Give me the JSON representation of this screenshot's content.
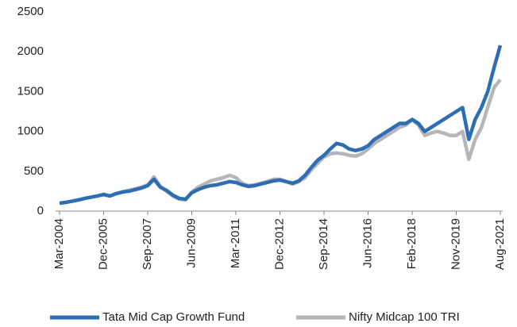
{
  "chart_data": {
    "type": "line",
    "categories": [
      "Mar-2004",
      null,
      null,
      null,
      null,
      null,
      null,
      "Dec-2005",
      null,
      null,
      null,
      null,
      null,
      null,
      "Sep-2007",
      null,
      null,
      null,
      null,
      null,
      null,
      "Jun-2009",
      null,
      null,
      null,
      null,
      null,
      null,
      "Mar-2011",
      null,
      null,
      null,
      null,
      null,
      null,
      "Dec-2012",
      null,
      null,
      null,
      null,
      null,
      null,
      "Sep-2014",
      null,
      null,
      null,
      null,
      null,
      null,
      "Jun-2016",
      null,
      null,
      null,
      null,
      null,
      null,
      "Feb-2018",
      null,
      null,
      null,
      null,
      null,
      null,
      "Nov-2019",
      null,
      null,
      null,
      null,
      null,
      null,
      "Aug-2021"
    ],
    "series": [
      {
        "name": "Tata Mid Cap Growth Fund",
        "color": "#2e6db4",
        "values": [
          100,
          110,
          125,
          140,
          160,
          175,
          190,
          210,
          190,
          220,
          240,
          250,
          270,
          290,
          320,
          400,
          300,
          260,
          200,
          160,
          150,
          230,
          270,
          300,
          320,
          330,
          350,
          370,
          360,
          330,
          310,
          320,
          340,
          360,
          380,
          390,
          370,
          350,
          380,
          450,
          550,
          640,
          700,
          780,
          850,
          830,
          780,
          760,
          780,
          820,
          900,
          950,
          1000,
          1050,
          1100,
          1100,
          1150,
          1100,
          1000,
          1050,
          1100,
          1150,
          1200,
          1250,
          1300,
          900,
          1150,
          1300,
          1500,
          1800,
          2080
        ]
      },
      {
        "name": "Nifty Midcap 100 TRI",
        "color": "#b3b6bb",
        "values": [
          100,
          110,
          125,
          140,
          160,
          175,
          190,
          205,
          190,
          220,
          240,
          260,
          280,
          300,
          330,
          430,
          310,
          250,
          190,
          150,
          140,
          240,
          300,
          340,
          380,
          400,
          420,
          450,
          420,
          350,
          320,
          330,
          350,
          370,
          400,
          400,
          370,
          340,
          370,
          420,
          520,
          600,
          680,
          720,
          730,
          720,
          700,
          690,
          720,
          780,
          850,
          900,
          950,
          1000,
          1050,
          1080,
          1150,
          1080,
          950,
          980,
          1000,
          980,
          950,
          950,
          1000,
          650,
          900,
          1050,
          1300,
          1550,
          1650
        ]
      }
    ],
    "ylim": [
      0,
      2500
    ],
    "yticks": [
      0,
      500,
      1000,
      1500,
      2000,
      2500
    ],
    "grid": false,
    "legend": "bottom"
  }
}
